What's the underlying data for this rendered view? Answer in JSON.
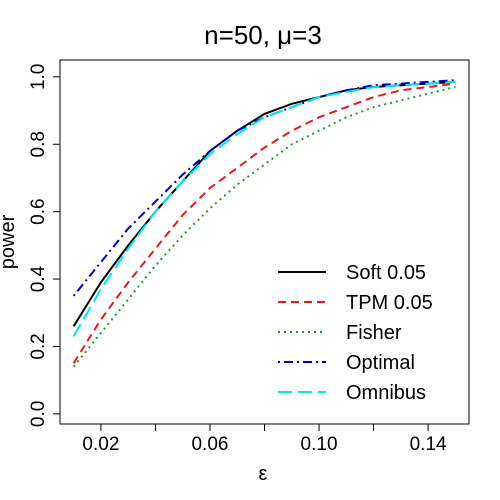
{
  "chart_data": {
    "type": "line",
    "title": "n=50, μ=3",
    "xlabel": "ε",
    "ylabel": "power",
    "xlim": [
      0.005,
      0.155
    ],
    "ylim": [
      -0.03,
      1.05
    ],
    "x_ticks": [
      0.02,
      0.04,
      0.06,
      0.08,
      0.1,
      0.12,
      0.14
    ],
    "x_tick_labels": [
      "0.02",
      "",
      "0.06",
      "",
      "0.10",
      "",
      "0.14"
    ],
    "y_ticks": [
      0.0,
      0.2,
      0.4,
      0.6,
      0.8,
      1.0
    ],
    "y_tick_labels": [
      "0.0",
      "0.2",
      "0.4",
      "0.6",
      "0.8",
      "1.0"
    ],
    "legend_position": "bottom-right",
    "grid": false,
    "x": [
      0.01,
      0.02,
      0.03,
      0.04,
      0.05,
      0.06,
      0.07,
      0.08,
      0.09,
      0.1,
      0.11,
      0.12,
      0.13,
      0.14,
      0.15
    ],
    "series": [
      {
        "name": "Soft 0.05",
        "color": "#000000",
        "dash": "solid",
        "values": [
          0.26,
          0.39,
          0.5,
          0.6,
          0.69,
          0.78,
          0.84,
          0.89,
          0.92,
          0.94,
          0.96,
          0.97,
          0.975,
          0.98,
          0.985
        ]
      },
      {
        "name": "TPM 0.05",
        "color": "#e41a1c",
        "dash": "dashed",
        "values": [
          0.15,
          0.28,
          0.39,
          0.49,
          0.59,
          0.67,
          0.73,
          0.79,
          0.84,
          0.88,
          0.91,
          0.94,
          0.96,
          0.97,
          0.98
        ]
      },
      {
        "name": "Fisher",
        "color": "#1aa31a",
        "dash": "dotted",
        "values": [
          0.14,
          0.24,
          0.34,
          0.44,
          0.53,
          0.61,
          0.68,
          0.74,
          0.8,
          0.84,
          0.88,
          0.91,
          0.93,
          0.95,
          0.97
        ]
      },
      {
        "name": "Optimal",
        "color": "#0000cc",
        "dash": "dotdash",
        "values": [
          0.35,
          0.45,
          0.55,
          0.63,
          0.71,
          0.78,
          0.84,
          0.88,
          0.91,
          0.94,
          0.96,
          0.975,
          0.98,
          0.985,
          0.99
        ]
      },
      {
        "name": "Omnibus",
        "color": "#00e5ee",
        "dash": "longdash",
        "values": [
          0.23,
          0.37,
          0.49,
          0.6,
          0.69,
          0.77,
          0.83,
          0.88,
          0.91,
          0.94,
          0.955,
          0.97,
          0.975,
          0.98,
          0.985
        ]
      }
    ]
  }
}
